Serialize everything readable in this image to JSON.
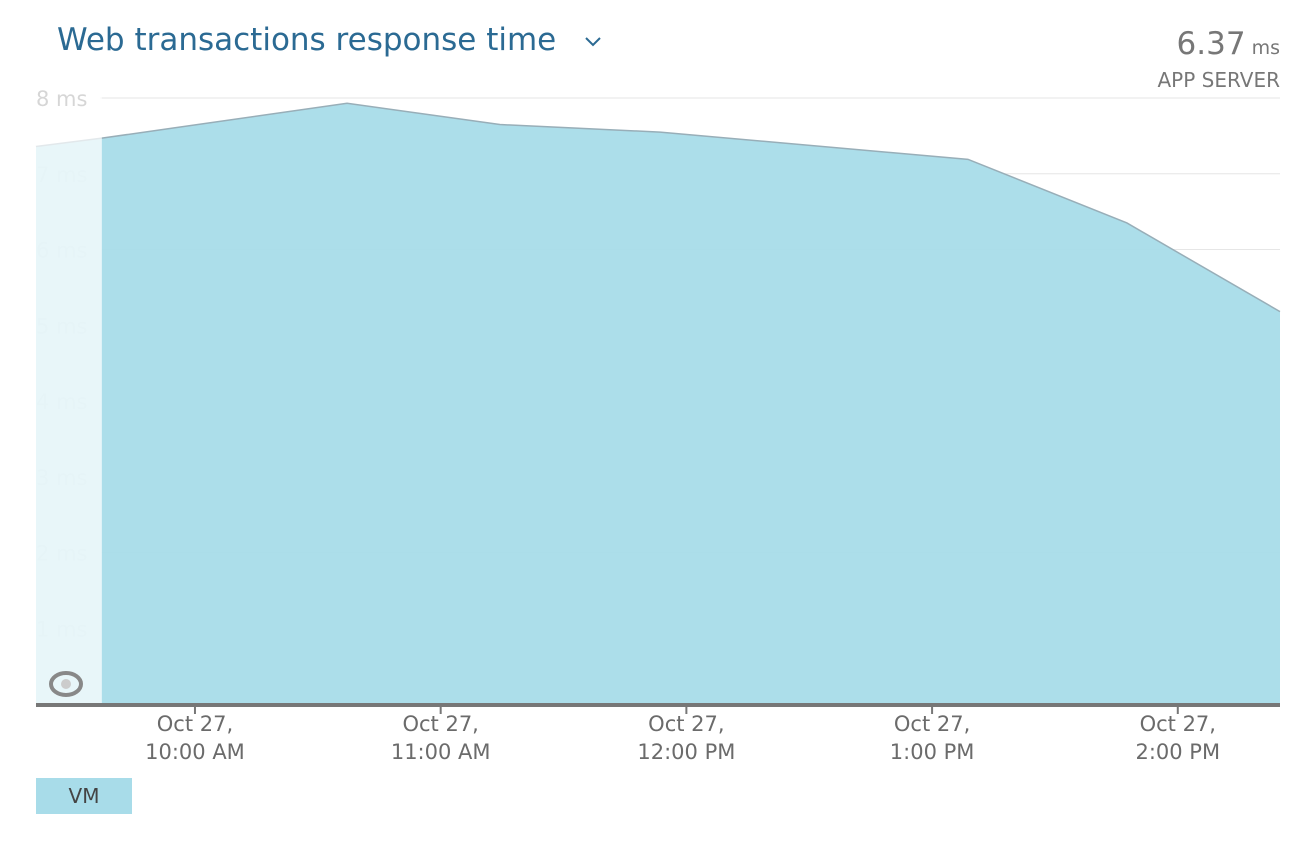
{
  "chart_data": {
    "type": "area",
    "title": "Web transactions response time",
    "summary_value": "6.37",
    "summary_unit": "ms",
    "summary_label": "APP SERVER",
    "x": [
      9.353,
      9.621,
      10.619,
      11.241,
      11.893,
      13.146,
      13.793,
      14.416
    ],
    "series": [
      {
        "name": "VM",
        "color": "#a8dce9",
        "values": [
          7.36,
          7.47,
          7.93,
          7.65,
          7.55,
          7.19,
          6.35,
          5.18
        ]
      }
    ],
    "xlim": [
      9.353,
      14.416
    ],
    "xticks": [
      {
        "value": 10,
        "label": "Oct 27, 10:00 AM"
      },
      {
        "value": 11,
        "label": "Oct 27, 11:00 AM"
      },
      {
        "value": 12,
        "label": "Oct 27, 12:00 PM"
      },
      {
        "value": 13,
        "label": "Oct 27, 1:00 PM"
      },
      {
        "value": 14,
        "label": "Oct 27, 2:00 PM"
      }
    ],
    "ylim": [
      0,
      8
    ],
    "yticks": [
      {
        "value": 1,
        "label": "1 ms"
      },
      {
        "value": 2,
        "label": "2 ms"
      },
      {
        "value": 3,
        "label": "3 ms"
      },
      {
        "value": 4,
        "label": "4 ms"
      },
      {
        "value": 5,
        "label": "5 ms"
      },
      {
        "value": 6,
        "label": "6 ms"
      },
      {
        "value": 7,
        "label": "7 ms"
      },
      {
        "value": 8,
        "label": "8 ms"
      }
    ],
    "grid": true
  }
}
